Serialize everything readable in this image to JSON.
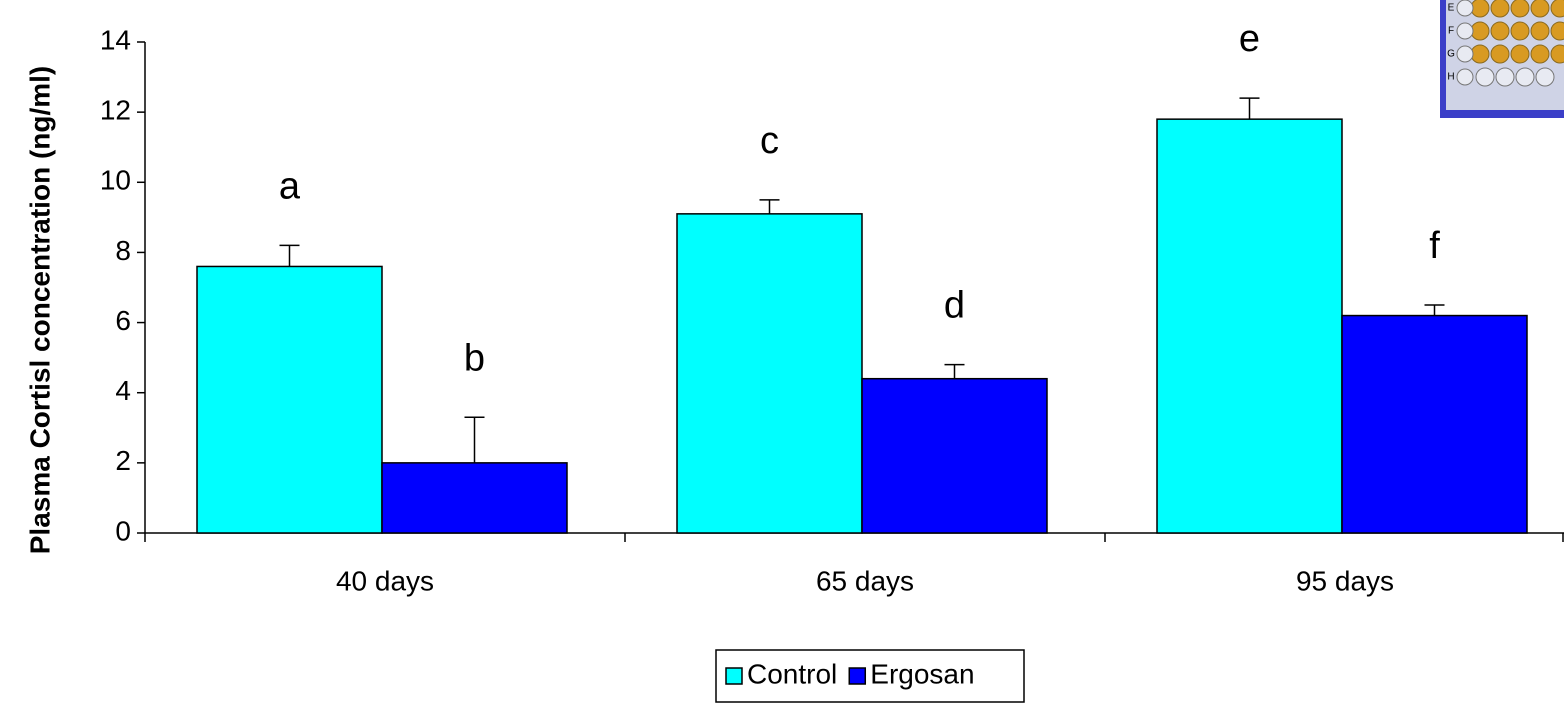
{
  "chart_data": {
    "type": "bar",
    "y_label": "Plasma Cortisl concentration (ng/ml)",
    "categories": [
      "40 days",
      "65 days",
      "95 days"
    ],
    "series": [
      {
        "name": "Control",
        "color": "#00ffff",
        "values": [
          7.6,
          9.1,
          11.8
        ],
        "errors": [
          0.6,
          0.4,
          0.6
        ],
        "letters": [
          "a",
          "c",
          "e"
        ]
      },
      {
        "name": "Ergosan",
        "color": "#0000ff",
        "values": [
          2.0,
          4.4,
          6.2
        ],
        "errors": [
          1.3,
          0.4,
          0.3
        ],
        "letters": [
          "b",
          "d",
          "f"
        ]
      }
    ],
    "ylim": [
      0,
      14
    ],
    "yticks": [
      0,
      2,
      4,
      6,
      8,
      10,
      12,
      14
    ],
    "grid": false,
    "legend": "bottom",
    "inset_labels": [
      "E",
      "F",
      "G",
      "H"
    ]
  }
}
